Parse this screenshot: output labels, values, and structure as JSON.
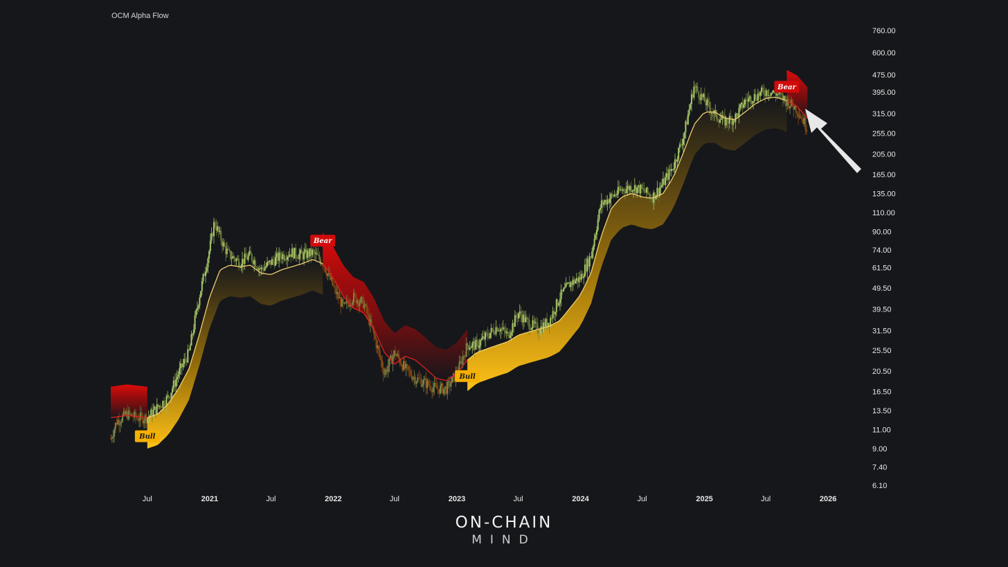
{
  "chart_data": {
    "type": "line",
    "title": "OCM Alpha Flow",
    "scale": "log",
    "ylim": [
      6.1,
      760
    ],
    "y_ticks": [
      "760.00",
      "600.00",
      "475.00",
      "395.00",
      "315.00",
      "255.00",
      "205.00",
      "165.00",
      "135.00",
      "110.00",
      "90.00",
      "74.00",
      "61.50",
      "49.50",
      "39.50",
      "31.50",
      "25.50",
      "20.50",
      "16.50",
      "13.50",
      "11.00",
      "9.00",
      "7.40",
      "6.10"
    ],
    "x_ticks": [
      {
        "label": "Jul",
        "date": "2020-07-01",
        "major": false
      },
      {
        "label": "2021",
        "date": "2021-01-01",
        "major": true
      },
      {
        "label": "Jul",
        "date": "2021-07-01",
        "major": false
      },
      {
        "label": "2022",
        "date": "2022-01-01",
        "major": true
      },
      {
        "label": "Jul",
        "date": "2022-07-01",
        "major": false
      },
      {
        "label": "2023",
        "date": "2023-01-01",
        "major": true
      },
      {
        "label": "Jul",
        "date": "2023-07-01",
        "major": false
      },
      {
        "label": "2024",
        "date": "2024-01-01",
        "major": true
      },
      {
        "label": "Jul",
        "date": "2024-07-01",
        "major": false
      },
      {
        "label": "2025",
        "date": "2025-01-01",
        "major": true
      },
      {
        "label": "Jul",
        "date": "2025-07-01",
        "major": false
      },
      {
        "label": "2026",
        "date": "2026-01-01",
        "major": true
      }
    ],
    "x_start": "2020-03-15",
    "x_end": "2026-03-01",
    "price": {
      "dates": [
        "2020-03-15",
        "2020-04-01",
        "2020-05-01",
        "2020-06-01",
        "2020-07-01",
        "2020-08-01",
        "2020-09-01",
        "2020-10-01",
        "2020-11-01",
        "2020-12-01",
        "2021-01-01",
        "2021-01-15",
        "2021-02-01",
        "2021-02-15",
        "2021-03-01",
        "2021-04-01",
        "2021-05-01",
        "2021-06-01",
        "2021-07-01",
        "2021-08-01",
        "2021-09-01",
        "2021-10-01",
        "2021-11-01",
        "2021-12-01",
        "2022-01-01",
        "2022-02-01",
        "2022-03-01",
        "2022-04-01",
        "2022-05-01",
        "2022-06-01",
        "2022-07-01",
        "2022-08-01",
        "2022-09-01",
        "2022-10-01",
        "2022-11-01",
        "2022-12-01",
        "2023-01-01",
        "2023-02-01",
        "2023-03-01",
        "2023-04-01",
        "2023-05-01",
        "2023-06-01",
        "2023-07-01",
        "2023-08-01",
        "2023-09-01",
        "2023-10-01",
        "2023-11-01",
        "2023-12-01",
        "2024-01-01",
        "2024-02-01",
        "2024-03-01",
        "2024-04-01",
        "2024-05-01",
        "2024-06-01",
        "2024-07-01",
        "2024-08-01",
        "2024-09-01",
        "2024-10-01",
        "2024-11-01",
        "2024-12-01",
        "2025-01-01",
        "2025-02-01",
        "2025-03-01",
        "2025-04-01",
        "2025-05-01",
        "2025-06-01",
        "2025-07-01",
        "2025-08-01",
        "2025-09-01",
        "2025-10-01",
        "2025-11-01"
      ],
      "values": [
        10.0,
        12.0,
        13.0,
        12.5,
        12.5,
        14.0,
        15.5,
        20.0,
        25.0,
        45.0,
        75.0,
        100.0,
        85.0,
        75.0,
        70.0,
        65.0,
        70.0,
        60.0,
        65.0,
        70.0,
        72.0,
        70.0,
        72.0,
        65.0,
        50.0,
        40.0,
        45.0,
        42.0,
        30.0,
        20.0,
        25.0,
        21.0,
        19.0,
        18.0,
        17.0,
        17.0,
        20.0,
        27.0,
        27.0,
        30.0,
        33.0,
        30.0,
        38.0,
        34.0,
        32.0,
        35.0,
        45.0,
        52.0,
        55.0,
        70.0,
        120.0,
        130.0,
        140.0,
        145.0,
        140.0,
        130.0,
        150.0,
        180.0,
        250.0,
        420.0,
        360.0,
        310.0,
        290.0,
        300.0,
        360.0,
        380.0,
        400.0,
        390.0,
        360.0,
        330.0,
        270.0
      ]
    },
    "trend_line": {
      "dates": [
        "2020-03-15",
        "2020-05-01",
        "2020-07-01",
        "2020-08-01",
        "2020-09-01",
        "2020-10-01",
        "2020-11-01",
        "2020-12-01",
        "2021-01-01",
        "2021-02-01",
        "2021-03-01",
        "2021-04-01",
        "2021-05-01",
        "2021-06-01",
        "2021-07-01",
        "2021-08-01",
        "2021-09-01",
        "2021-10-01",
        "2021-11-01",
        "2021-12-01",
        "2022-01-01",
        "2022-02-01",
        "2022-03-01",
        "2022-04-01",
        "2022-05-01",
        "2022-06-01",
        "2022-07-01",
        "2022-08-01",
        "2022-09-01",
        "2022-10-01",
        "2022-11-01",
        "2022-12-01",
        "2023-01-01",
        "2023-02-01",
        "2023-03-01",
        "2023-04-01",
        "2023-05-01",
        "2023-06-01",
        "2023-07-01",
        "2023-08-01",
        "2023-09-01",
        "2023-10-01",
        "2023-11-01",
        "2023-12-01",
        "2024-01-01",
        "2024-02-01",
        "2024-03-01",
        "2024-04-01",
        "2024-05-01",
        "2024-06-01",
        "2024-07-01",
        "2024-08-01",
        "2024-09-01",
        "2024-10-01",
        "2024-11-01",
        "2024-12-01",
        "2025-01-01",
        "2025-02-01",
        "2025-03-01",
        "2025-04-01",
        "2025-05-01",
        "2025-06-01",
        "2025-07-01",
        "2025-08-01",
        "2025-09-01",
        "2025-10-01",
        "2025-11-01"
      ],
      "values": [
        12.5,
        12.8,
        12.5,
        13.0,
        14.5,
        17.0,
        21.0,
        30.0,
        45.0,
        60.0,
        63.0,
        62.0,
        63.0,
        58.0,
        57.0,
        60.0,
        62.0,
        64.0,
        67.0,
        64.0,
        55.0,
        45.0,
        40.0,
        38.0,
        32.0,
        25.0,
        22.0,
        24.0,
        23.0,
        21.0,
        19.0,
        18.5,
        20.0,
        23.0,
        25.0,
        26.0,
        27.0,
        28.0,
        30.0,
        31.0,
        32.0,
        33.0,
        35.0,
        40.0,
        46.0,
        58.0,
        85.0,
        115.0,
        130.0,
        135.0,
        130.0,
        128.0,
        135.0,
        160.0,
        210.0,
        280.0,
        320.0,
        320.0,
        300.0,
        295.0,
        320.0,
        350.0,
        370.0,
        375.0,
        360.0,
        340.0,
        300.0
      ]
    },
    "band_depth_ratio": 0.72,
    "signals": [
      {
        "label": "Bull",
        "date": "2020-07-01",
        "value": 10.3,
        "type": "bull"
      },
      {
        "label": "Bear",
        "date": "2021-12-01",
        "value": 82.0,
        "type": "bear"
      },
      {
        "label": "Bull",
        "date": "2023-02-01",
        "value": 19.5,
        "type": "bull"
      },
      {
        "label": "Bear",
        "date": "2025-09-01",
        "value": 420.0,
        "type": "bear"
      }
    ],
    "regimes": [
      {
        "type": "bear",
        "start": "2020-03-15",
        "end": "2020-07-01"
      },
      {
        "type": "bull",
        "start": "2020-07-01",
        "end": "2021-12-01"
      },
      {
        "type": "bear",
        "start": "2021-12-01",
        "end": "2023-02-01"
      },
      {
        "type": "bull",
        "start": "2023-02-01",
        "end": "2025-09-01"
      },
      {
        "type": "bear",
        "start": "2025-09-01",
        "end": "2025-11-01"
      }
    ],
    "grid": false,
    "legend": "none"
  },
  "colors": {
    "background": "#16171b",
    "bull_band": "#f5b000",
    "bear_band": "#d10a0a",
    "bull_line": "#f0d070",
    "bear_line": "#e02020",
    "candle_up": "#a8c868",
    "candle_down": "#8a4a12",
    "arrow": "#e8e8e8"
  },
  "brand": {
    "top": "ON-CHAIN",
    "bottom": "MIND"
  }
}
